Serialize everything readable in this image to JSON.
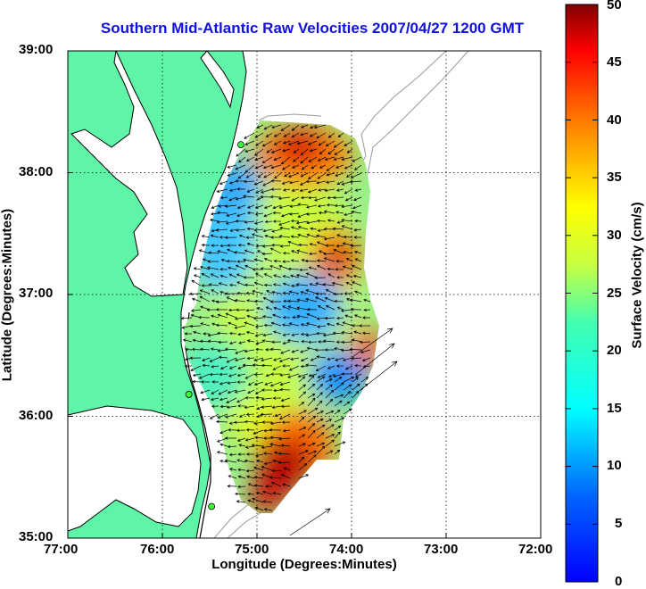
{
  "title": "Southern Mid-Atlantic Raw Velocities 2007/04/27 1200 GMT",
  "map": {
    "xlabel": "Longitude (Degrees:Minutes)",
    "ylabel": "Latitude (Degrees:Minutes)",
    "lon_ticks": [
      "77:00",
      "76:00",
      "75:00",
      "74:00",
      "73:00",
      "72:00"
    ],
    "lat_ticks": [
      "39:00",
      "38:00",
      "37:00",
      "36:00",
      "35:00"
    ],
    "lon_range": [
      -77,
      -72
    ],
    "lat_range": [
      35,
      39
    ],
    "grid": true,
    "land_color": "#5ef5a8",
    "water_color": "#ffffff"
  },
  "colorbar": {
    "label": "Surface Velocity (cm/s)",
    "ticks": [
      "50",
      "45",
      "40",
      "35",
      "30",
      "25",
      "20",
      "15",
      "10",
      "5",
      "0"
    ],
    "range": [
      0,
      50
    ],
    "colormap": "jet"
  },
  "stations": [
    {
      "lon": -75.17,
      "lat": 38.23
    },
    {
      "lon": -75.72,
      "lat": 36.18
    },
    {
      "lon": -75.48,
      "lat": 35.26
    }
  ]
}
